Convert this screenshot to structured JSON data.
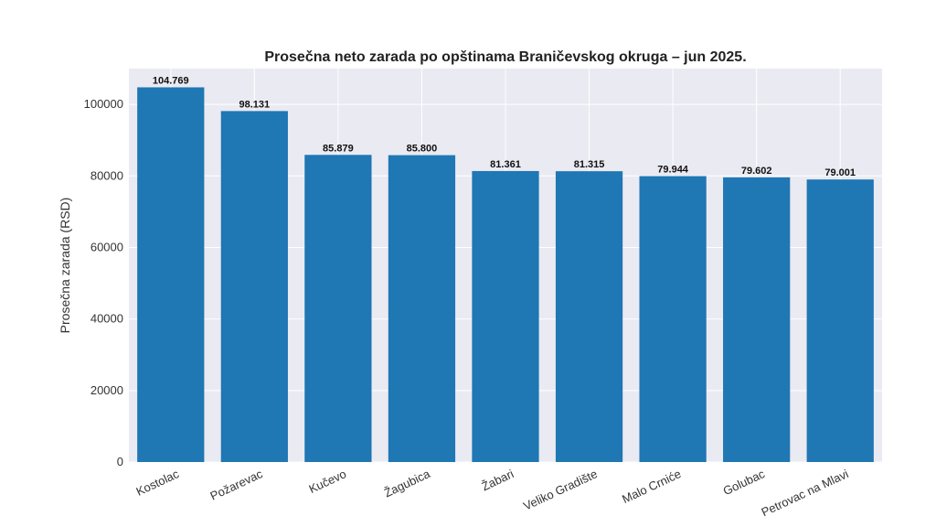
{
  "chart_data": {
    "type": "bar",
    "title": "Prosečna neto zarada po opštinama Braničevskog okruga – jun 2025.",
    "xlabel": "",
    "ylabel": "Prosečna zarada (RSD)",
    "ylim": [
      0,
      110000
    ],
    "yticks": [
      0,
      20000,
      40000,
      60000,
      80000,
      100000
    ],
    "grid": true,
    "bar_color": "#1f77b4",
    "background_color": "#eaeaf2",
    "categories": [
      "Kostolac",
      "Požarevac",
      "Kučevo",
      "Žagubica",
      "Žabari",
      "Veliko Gradište",
      "Malo Crniće",
      "Golubac",
      "Petrovac na Mlavi"
    ],
    "values": [
      104769,
      98131,
      85879,
      85800,
      81361,
      81315,
      79944,
      79602,
      79001
    ],
    "data_labels": [
      "104.769",
      "98.131",
      "85.879",
      "85.800",
      "81.361",
      "81.315",
      "79.944",
      "79.602",
      "79.001"
    ]
  }
}
